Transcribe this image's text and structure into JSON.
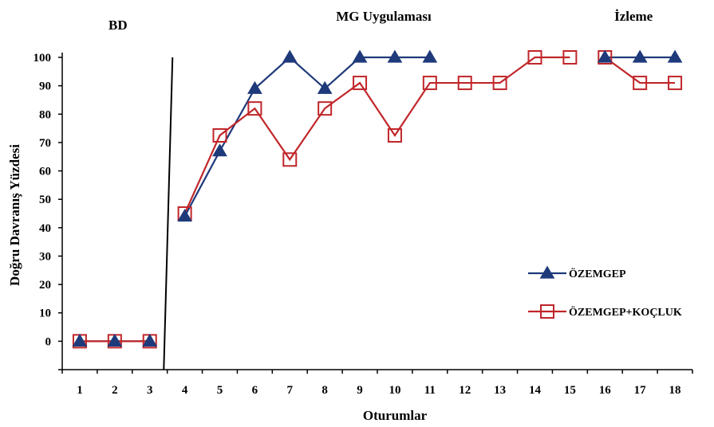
{
  "chart_data": {
    "type": "line",
    "xlabel": "Oturumlar",
    "ylabel": "Doğru Davranış Yüzdesi",
    "ylim": [
      -10,
      100
    ],
    "yticks": [
      0,
      10,
      20,
      30,
      40,
      50,
      60,
      70,
      80,
      90,
      100
    ],
    "x": [
      1,
      2,
      3,
      4,
      5,
      6,
      7,
      8,
      9,
      10,
      11,
      12,
      13,
      14,
      15,
      16,
      17,
      18
    ],
    "phases": [
      {
        "label": "BD",
        "sessions": [
          1,
          3
        ]
      },
      {
        "label": "MG Uygulaması",
        "sessions": [
          4,
          15
        ]
      },
      {
        "label": "İzleme",
        "sessions": [
          16,
          18
        ]
      }
    ],
    "phase_line_after_session": 3,
    "legend_position": "right",
    "series": [
      {
        "name": "ÖZEMGEP",
        "color": "#1F3A7A",
        "marker": "triangle-filled",
        "segments": [
          [
            [
              1,
              0
            ],
            [
              2,
              0
            ],
            [
              3,
              0
            ]
          ],
          [
            [
              4,
              44
            ],
            [
              5,
              67
            ],
            [
              6,
              89
            ],
            [
              7,
              100
            ],
            [
              8,
              89
            ],
            [
              9,
              100
            ],
            [
              10,
              100
            ],
            [
              11,
              100
            ]
          ],
          [
            [
              16,
              100
            ],
            [
              17,
              100
            ],
            [
              18,
              100
            ]
          ]
        ]
      },
      {
        "name": "ÖZEMGEP+KOÇLUK",
        "color": "#C0262A",
        "marker": "square-open",
        "segments": [
          [
            [
              1,
              0
            ],
            [
              2,
              0
            ],
            [
              3,
              0
            ]
          ],
          [
            [
              4,
              45
            ],
            [
              5,
              72.5
            ],
            [
              6,
              82
            ],
            [
              7,
              64
            ],
            [
              8,
              82
            ],
            [
              9,
              91
            ],
            [
              10,
              72.5
            ],
            [
              11,
              91
            ],
            [
              12,
              91
            ],
            [
              13,
              91
            ],
            [
              14,
              100
            ],
            [
              15,
              100
            ]
          ],
          [
            [
              16,
              100
            ],
            [
              17,
              91
            ],
            [
              18,
              91
            ]
          ]
        ]
      }
    ]
  }
}
